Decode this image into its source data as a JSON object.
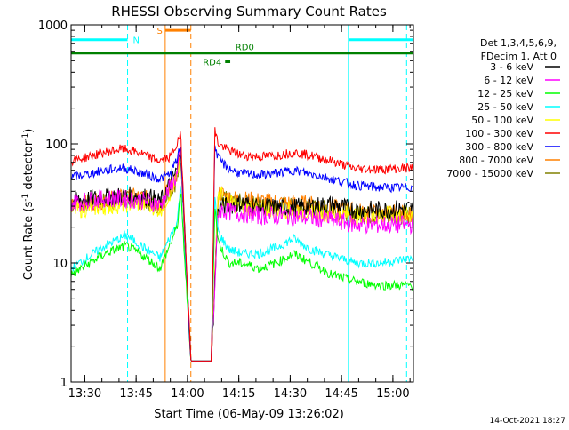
{
  "chart_data": {
    "type": "line",
    "title": "RHESSI Observing Summary Count Rates",
    "xlabel": "Start Time (06-May-09 13:26:02)",
    "ylabel_main": "Count Rate (s",
    "ylabel_sup1": "-1",
    "ylabel_mid": " detector",
    "ylabel_sup2": "-1",
    "ylabel_end": ")",
    "yscale": "log",
    "xlim_minutes": [
      0,
      100
    ],
    "ylim": [
      1,
      1000
    ],
    "x_ticks": [
      {
        "minute": 4,
        "label": "13:30"
      },
      {
        "minute": 19,
        "label": "13:45"
      },
      {
        "minute": 34,
        "label": "14:00"
      },
      {
        "minute": 49,
        "label": "14:15"
      },
      {
        "minute": 64,
        "label": "14:30"
      },
      {
        "minute": 79,
        "label": "14:45"
      },
      {
        "minute": 94,
        "label": "15:00"
      }
    ],
    "y_ticks": [
      {
        "value": 1,
        "label": "1"
      },
      {
        "value": 10,
        "label": "10"
      },
      {
        "value": 100,
        "label": "100"
      },
      {
        "value": 1000,
        "label": "1000"
      }
    ],
    "legend_header": [
      "Det 1,3,4,5,6,9,",
      "FDecim 1, Att 0"
    ],
    "legend_position": "right",
    "series": [
      {
        "name": "3 - 6 keV",
        "color": "#000000",
        "points": [
          [
            0,
            33
          ],
          [
            10,
            36
          ],
          [
            19,
            37
          ],
          [
            24,
            35
          ],
          [
            26,
            32
          ],
          [
            31,
            60
          ],
          [
            32,
            100
          ],
          [
            35,
            1.5
          ],
          [
            37,
            1.5
          ],
          [
            39,
            1.5
          ],
          [
            41,
            1.5
          ],
          [
            43,
            30
          ],
          [
            46,
            30
          ],
          [
            50,
            32
          ],
          [
            55,
            30
          ],
          [
            62,
            29
          ],
          [
            70,
            30
          ],
          [
            76,
            31
          ],
          [
            83,
            28
          ],
          [
            90,
            28
          ],
          [
            100,
            29
          ]
        ]
      },
      {
        "name": "6 - 12 keV",
        "color": "#ff00ff",
        "points": [
          [
            0,
            32
          ],
          [
            10,
            35
          ],
          [
            19,
            34
          ],
          [
            24,
            32
          ],
          [
            26,
            30
          ],
          [
            31,
            55
          ],
          [
            32,
            90
          ],
          [
            35,
            1.5
          ],
          [
            37,
            1.5
          ],
          [
            39,
            1.5
          ],
          [
            41,
            1.5
          ],
          [
            43,
            28
          ],
          [
            46,
            27
          ],
          [
            50,
            26
          ],
          [
            55,
            25
          ],
          [
            62,
            25
          ],
          [
            70,
            24
          ],
          [
            76,
            23
          ],
          [
            83,
            21
          ],
          [
            90,
            21
          ],
          [
            100,
            21
          ]
        ]
      },
      {
        "name": "12 - 25 keV",
        "color": "#00ff00",
        "points": [
          [
            0,
            8
          ],
          [
            10,
            12
          ],
          [
            16,
            14
          ],
          [
            19,
            12.5
          ],
          [
            22,
            11
          ],
          [
            24,
            10
          ],
          [
            26,
            9
          ],
          [
            31,
            20
          ],
          [
            32,
            40
          ],
          [
            35,
            1.5
          ],
          [
            37,
            1.5
          ],
          [
            39,
            1.5
          ],
          [
            41,
            1.5
          ],
          [
            42,
            30
          ],
          [
            43,
            15
          ],
          [
            46,
            10
          ],
          [
            50,
            10
          ],
          [
            55,
            9
          ],
          [
            60,
            10
          ],
          [
            65,
            12
          ],
          [
            70,
            10
          ],
          [
            76,
            8
          ],
          [
            83,
            7
          ],
          [
            90,
            6.5
          ],
          [
            100,
            6.5
          ]
        ]
      },
      {
        "name": "25 - 50 keV",
        "color": "#00ffff",
        "points": [
          [
            0,
            9
          ],
          [
            10,
            14
          ],
          [
            16,
            17
          ],
          [
            19,
            15
          ],
          [
            22,
            13
          ],
          [
            24,
            12
          ],
          [
            26,
            11
          ],
          [
            31,
            22
          ],
          [
            32,
            45
          ],
          [
            35,
            1.5
          ],
          [
            37,
            1.5
          ],
          [
            39,
            1.5
          ],
          [
            41,
            1.5
          ],
          [
            42,
            35
          ],
          [
            43,
            18
          ],
          [
            46,
            13
          ],
          [
            50,
            12
          ],
          [
            55,
            12
          ],
          [
            60,
            13.5
          ],
          [
            65,
            16
          ],
          [
            70,
            13
          ],
          [
            76,
            11.5
          ],
          [
            83,
            10
          ],
          [
            90,
            10
          ],
          [
            100,
            11
          ]
        ]
      },
      {
        "name": "50 - 100 keV",
        "color": "#ffff00",
        "points": [
          [
            0,
            28
          ],
          [
            10,
            30
          ],
          [
            19,
            32
          ],
          [
            24,
            30
          ],
          [
            26,
            28
          ],
          [
            31,
            50
          ],
          [
            32,
            80
          ],
          [
            35,
            1.5
          ],
          [
            37,
            1.5
          ],
          [
            39,
            1.5
          ],
          [
            41,
            1.5
          ],
          [
            43,
            40
          ],
          [
            46,
            32
          ],
          [
            50,
            30
          ],
          [
            55,
            29
          ],
          [
            62,
            28
          ],
          [
            70,
            27
          ],
          [
            76,
            26
          ],
          [
            83,
            25
          ],
          [
            90,
            25
          ],
          [
            100,
            26
          ]
        ]
      },
      {
        "name": "100 - 300 keV",
        "color": "#ff0000",
        "points": [
          [
            0,
            72
          ],
          [
            5,
            78
          ],
          [
            10,
            85
          ],
          [
            15,
            91
          ],
          [
            19,
            86
          ],
          [
            22,
            80
          ],
          [
            24,
            75
          ],
          [
            26,
            72
          ],
          [
            29,
            78
          ],
          [
            31,
            100
          ],
          [
            32,
            120
          ],
          [
            35,
            1.5
          ],
          [
            37,
            1.5
          ],
          [
            39,
            1.5
          ],
          [
            41,
            1.5
          ],
          [
            42,
            130
          ],
          [
            43,
            100
          ],
          [
            46,
            88
          ],
          [
            50,
            80
          ],
          [
            55,
            78
          ],
          [
            60,
            80
          ],
          [
            65,
            85
          ],
          [
            70,
            80
          ],
          [
            76,
            72
          ],
          [
            83,
            62
          ],
          [
            90,
            61
          ],
          [
            100,
            63
          ]
        ]
      },
      {
        "name": "300 - 800 keV",
        "color": "#0000ff",
        "points": [
          [
            0,
            52
          ],
          [
            5,
            56
          ],
          [
            10,
            60
          ],
          [
            15,
            63
          ],
          [
            19,
            59
          ],
          [
            22,
            55
          ],
          [
            24,
            53
          ],
          [
            26,
            51
          ],
          [
            29,
            56
          ],
          [
            31,
            75
          ],
          [
            32,
            95
          ],
          [
            35,
            1.5
          ],
          [
            37,
            1.5
          ],
          [
            39,
            1.5
          ],
          [
            41,
            1.5
          ],
          [
            42,
            100
          ],
          [
            43,
            75
          ],
          [
            46,
            62
          ],
          [
            50,
            56
          ],
          [
            55,
            55
          ],
          [
            60,
            57
          ],
          [
            65,
            60
          ],
          [
            70,
            56
          ],
          [
            76,
            51
          ],
          [
            83,
            45
          ],
          [
            90,
            43
          ],
          [
            100,
            43
          ]
        ]
      },
      {
        "name": "800 - 7000 keV",
        "color": "#ff8000",
        "points": [
          [
            0,
            30
          ],
          [
            10,
            34
          ],
          [
            19,
            36
          ],
          [
            24,
            33
          ],
          [
            26,
            31
          ],
          [
            31,
            55
          ],
          [
            32,
            85
          ],
          [
            35,
            1.5
          ],
          [
            37,
            1.5
          ],
          [
            39,
            1.5
          ],
          [
            41,
            1.5
          ],
          [
            43,
            40
          ],
          [
            46,
            35
          ],
          [
            50,
            34
          ],
          [
            55,
            33
          ],
          [
            62,
            32
          ],
          [
            70,
            31
          ],
          [
            76,
            29
          ],
          [
            83,
            27
          ],
          [
            90,
            26
          ],
          [
            100,
            26
          ]
        ]
      },
      {
        "name": "7000 - 15000 keV",
        "color": "#808000",
        "points": [
          [
            0,
            31
          ],
          [
            10,
            33
          ],
          [
            19,
            34
          ],
          [
            24,
            32
          ],
          [
            26,
            30
          ],
          [
            31,
            50
          ],
          [
            32,
            80
          ],
          [
            35,
            1.5
          ],
          [
            37,
            1.5
          ],
          [
            39,
            1.5
          ],
          [
            41,
            1.5
          ],
          [
            43,
            36
          ],
          [
            46,
            33
          ],
          [
            50,
            32
          ],
          [
            55,
            31
          ],
          [
            62,
            30
          ],
          [
            70,
            29
          ],
          [
            76,
            28
          ],
          [
            83,
            26
          ],
          [
            90,
            25
          ],
          [
            100,
            25
          ]
        ]
      }
    ],
    "flags": [
      {
        "label": "N",
        "color": "#00ffff",
        "bars": [
          [
            0,
            16.5
          ],
          [
            81,
            100
          ]
        ],
        "level": 750
      },
      {
        "label": "S",
        "color": "#ff8000",
        "bars": [
          [
            27.5,
            35
          ]
        ],
        "level": 900
      },
      {
        "label": "RD0",
        "color": "#008000",
        "bars": [
          [
            0,
            100
          ]
        ],
        "level": 580
      },
      {
        "label": "RD4",
        "color": "#008000",
        "bars": [
          [
            45,
            46.5
          ]
        ],
        "level": 490
      }
    ],
    "vlines": [
      {
        "minute": 0,
        "color": "#00ffff",
        "style": "dashed"
      },
      {
        "minute": 16.5,
        "color": "#00ffff",
        "style": "dashed"
      },
      {
        "minute": 81,
        "color": "#00ffff",
        "style": "solid"
      },
      {
        "minute": 98,
        "color": "#00ffff",
        "style": "dashed"
      },
      {
        "minute": 27.5,
        "color": "#ff8000",
        "style": "solid"
      },
      {
        "minute": 35,
        "color": "#ff8000",
        "style": "dashed"
      }
    ],
    "footer_timestamp": "14-Oct-2021 18:27"
  }
}
